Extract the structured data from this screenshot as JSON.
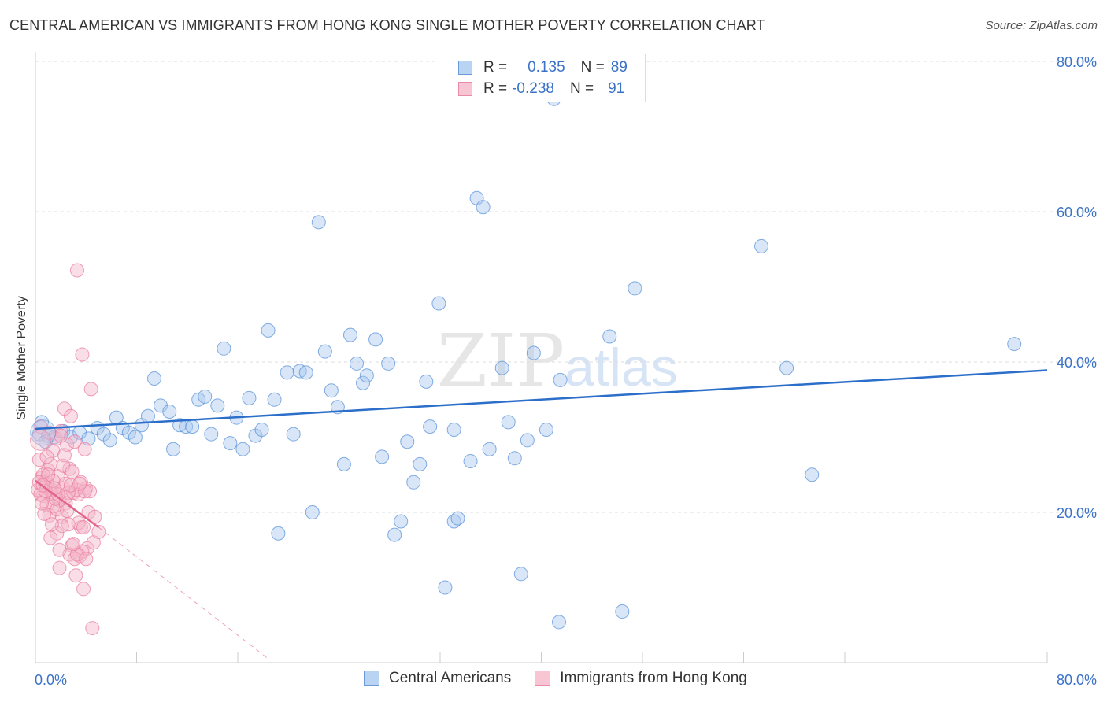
{
  "title": "CENTRAL AMERICAN VS IMMIGRANTS FROM HONG KONG SINGLE MOTHER POVERTY CORRELATION CHART",
  "source": "Source: ZipAtlas.com",
  "watermark": {
    "zip": "ZIP",
    "atlas": "atlas"
  },
  "legend": {
    "rows": [
      {
        "r_label": "R =",
        "r_value": "0.135",
        "n_label": "N =",
        "n_value": "89"
      },
      {
        "r_label": "R =",
        "r_value": "-0.238",
        "n_label": "N =",
        "n_value": "91"
      }
    ]
  },
  "bottom_legend": {
    "series1": "Central Americans",
    "series2": "Immigrants from Hong Kong"
  },
  "colors": {
    "blue_fill": "#a9c8ee",
    "blue_stroke": "#5b93d9",
    "blue_line": "#2c6fca",
    "pink_fill": "#f5b6c9",
    "pink_stroke": "#ea7fa0",
    "pink_line": "#e0648c",
    "axis_text": "#3a72c8",
    "grid": "#dddddd"
  },
  "chart_data": {
    "type": "scatter",
    "title": "CENTRAL AMERICAN VS IMMIGRANTS FROM HONG KONG SINGLE MOTHER POVERTY CORRELATION CHART",
    "xlabel": "",
    "ylabel": "Single Mother Poverty",
    "xlim": [
      0,
      80
    ],
    "ylim": [
      0,
      80
    ],
    "x_tick_labels": [
      "0.0%",
      "80.0%"
    ],
    "y_tick_labels": [
      "20.0%",
      "40.0%",
      "60.0%",
      "80.0%"
    ],
    "y_ticks": [
      20,
      40,
      60,
      80
    ],
    "grid": true,
    "legend_position": "top-center",
    "series": [
      {
        "name": "Central Americans",
        "R": 0.135,
        "N": 89,
        "trend": {
          "x1": 0,
          "y1": 31.1,
          "x2": 80,
          "y2": 38.9,
          "dashed_extension": false
        },
        "points": [
          [
            0.5,
            32.0
          ],
          [
            1.0,
            30.2
          ],
          [
            1.5,
            30.0
          ],
          [
            2.2,
            30.8
          ],
          [
            2.8,
            30.0
          ],
          [
            3.5,
            30.6
          ],
          [
            4.2,
            29.8
          ],
          [
            4.9,
            31.2
          ],
          [
            5.4,
            30.4
          ],
          [
            5.9,
            29.6
          ],
          [
            6.4,
            32.6
          ],
          [
            6.9,
            31.2
          ],
          [
            7.4,
            30.6
          ],
          [
            7.9,
            30.0
          ],
          [
            8.4,
            31.6
          ],
          [
            8.9,
            32.8
          ],
          [
            9.4,
            37.8
          ],
          [
            9.9,
            34.2
          ],
          [
            10.6,
            33.4
          ],
          [
            10.9,
            28.4
          ],
          [
            11.4,
            31.6
          ],
          [
            11.9,
            31.4
          ],
          [
            12.4,
            31.4
          ],
          [
            12.9,
            35.0
          ],
          [
            13.4,
            35.4
          ],
          [
            13.9,
            30.4
          ],
          [
            14.4,
            34.2
          ],
          [
            14.9,
            41.8
          ],
          [
            15.4,
            29.2
          ],
          [
            15.9,
            32.6
          ],
          [
            16.4,
            28.4
          ],
          [
            16.9,
            35.2
          ],
          [
            17.4,
            30.2
          ],
          [
            17.9,
            31.0
          ],
          [
            18.4,
            44.2
          ],
          [
            18.9,
            35.0
          ],
          [
            19.2,
            17.2
          ],
          [
            19.9,
            38.6
          ],
          [
            20.4,
            30.4
          ],
          [
            20.9,
            38.8
          ],
          [
            21.4,
            38.6
          ],
          [
            21.9,
            20.0
          ],
          [
            22.4,
            58.6
          ],
          [
            22.9,
            41.4
          ],
          [
            23.4,
            36.2
          ],
          [
            23.9,
            34.0
          ],
          [
            24.4,
            26.4
          ],
          [
            24.9,
            43.6
          ],
          [
            25.4,
            39.8
          ],
          [
            25.9,
            37.2
          ],
          [
            26.2,
            38.2
          ],
          [
            26.9,
            43.0
          ],
          [
            27.4,
            27.4
          ],
          [
            27.9,
            39.8
          ],
          [
            28.4,
            17.0
          ],
          [
            28.9,
            18.8
          ],
          [
            29.4,
            29.4
          ],
          [
            29.9,
            24.0
          ],
          [
            30.4,
            26.4
          ],
          [
            30.9,
            37.4
          ],
          [
            31.2,
            31.4
          ],
          [
            31.9,
            47.8
          ],
          [
            32.4,
            10.0
          ],
          [
            33.1,
            18.8
          ],
          [
            33.4,
            19.2
          ],
          [
            33.1,
            31.0
          ],
          [
            34.4,
            26.8
          ],
          [
            34.9,
            61.8
          ],
          [
            35.4,
            60.6
          ],
          [
            35.9,
            28.4
          ],
          [
            36.9,
            39.2
          ],
          [
            37.4,
            32.0
          ],
          [
            37.9,
            27.2
          ],
          [
            38.4,
            11.8
          ],
          [
            38.9,
            29.6
          ],
          [
            39.4,
            41.2
          ],
          [
            40.4,
            31.0
          ],
          [
            41.0,
            75.0
          ],
          [
            41.4,
            5.4
          ],
          [
            41.5,
            37.6
          ],
          [
            45.4,
            43.4
          ],
          [
            46.4,
            6.8
          ],
          [
            47.4,
            49.8
          ],
          [
            57.4,
            55.4
          ],
          [
            59.4,
            39.2
          ],
          [
            61.4,
            25.0
          ],
          [
            77.4,
            42.4
          ],
          [
            0.3,
            30.4
          ],
          [
            0.8,
            29.4
          ]
        ]
      },
      {
        "name": "Immigrants from Hong Kong",
        "R": -0.238,
        "N": 91,
        "trend": {
          "x1": 0,
          "y1": 24.2,
          "x2": 5.0,
          "y2": 18.0,
          "dash_to_x": 18.5,
          "dash_to_y": 0.4
        },
        "points": [
          [
            0.3,
            27.0
          ],
          [
            0.5,
            24.6
          ],
          [
            0.6,
            22.2
          ],
          [
            0.7,
            24.0
          ],
          [
            0.8,
            23.4
          ],
          [
            0.9,
            21.0
          ],
          [
            1.0,
            25.6
          ],
          [
            1.1,
            19.6
          ],
          [
            1.2,
            26.4
          ],
          [
            1.3,
            23.0
          ],
          [
            1.4,
            28.2
          ],
          [
            1.5,
            22.6
          ],
          [
            1.6,
            29.8
          ],
          [
            1.7,
            17.2
          ],
          [
            1.8,
            24.8
          ],
          [
            1.9,
            21.6
          ],
          [
            2.0,
            30.8
          ],
          [
            2.1,
            19.4
          ],
          [
            2.2,
            23.2
          ],
          [
            2.3,
            33.8
          ],
          [
            2.4,
            22.0
          ],
          [
            2.5,
            29.0
          ],
          [
            2.6,
            18.4
          ],
          [
            2.7,
            25.8
          ],
          [
            2.8,
            32.8
          ],
          [
            2.9,
            15.6
          ],
          [
            3.0,
            22.6
          ],
          [
            3.1,
            29.4
          ],
          [
            3.2,
            11.6
          ],
          [
            3.3,
            52.2
          ],
          [
            3.4,
            22.4
          ],
          [
            3.5,
            14.2
          ],
          [
            3.6,
            18.0
          ],
          [
            3.7,
            41.0
          ],
          [
            3.8,
            9.8
          ],
          [
            3.9,
            28.4
          ],
          [
            4.0,
            23.2
          ],
          [
            4.1,
            15.2
          ],
          [
            4.2,
            20.0
          ],
          [
            4.3,
            22.8
          ],
          [
            4.4,
            36.4
          ],
          [
            4.5,
            4.6
          ],
          [
            4.6,
            16.0
          ],
          [
            4.7,
            19.4
          ],
          [
            5.0,
            17.4
          ],
          [
            0.4,
            31.4
          ],
          [
            0.9,
            27.4
          ],
          [
            1.4,
            20.8
          ],
          [
            1.9,
            12.6
          ],
          [
            2.4,
            23.8
          ],
          [
            0.2,
            23.0
          ],
          [
            0.7,
            19.8
          ],
          [
            1.2,
            16.6
          ],
          [
            1.7,
            20.4
          ],
          [
            2.2,
            26.2
          ],
          [
            2.7,
            14.4
          ],
          [
            3.2,
            23.0
          ],
          [
            3.7,
            14.8
          ],
          [
            0.6,
            25.0
          ],
          [
            1.1,
            23.0
          ],
          [
            1.6,
            21.8
          ],
          [
            2.1,
            18.2
          ],
          [
            2.6,
            22.6
          ],
          [
            3.1,
            13.8
          ],
          [
            3.6,
            24.0
          ],
          [
            0.4,
            22.4
          ],
          [
            0.9,
            23.8
          ],
          [
            1.4,
            24.2
          ],
          [
            1.9,
            15.0
          ],
          [
            2.4,
            21.2
          ],
          [
            2.9,
            25.4
          ],
          [
            3.4,
            18.6
          ],
          [
            3.9,
            22.8
          ],
          [
            0.3,
            24.0
          ],
          [
            0.8,
            22.8
          ],
          [
            1.3,
            18.4
          ],
          [
            1.8,
            22.4
          ],
          [
            2.3,
            27.6
          ],
          [
            2.8,
            23.6
          ],
          [
            3.3,
            14.4
          ],
          [
            3.8,
            18.0
          ],
          [
            0.5,
            21.2
          ],
          [
            1.0,
            25.0
          ],
          [
            1.5,
            23.2
          ],
          [
            2.0,
            30.2
          ],
          [
            2.5,
            20.2
          ],
          [
            3.0,
            15.8
          ],
          [
            3.5,
            23.8
          ],
          [
            4.0,
            13.8
          ],
          [
            0.6,
            23.6
          ],
          [
            1.1,
            30.6
          ]
        ]
      }
    ]
  }
}
